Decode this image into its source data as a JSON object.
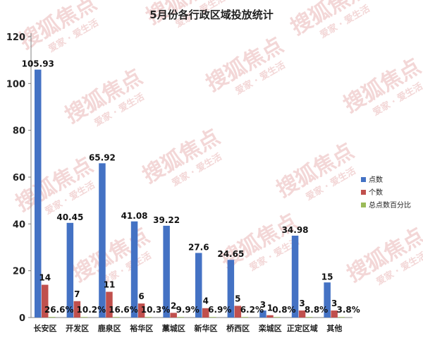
{
  "chart_data": {
    "type": "bar",
    "title": "5月份各行政区域投放统计",
    "categories": [
      "长安区",
      "开发区",
      "鹿泉区",
      "裕华区",
      "藁城区",
      "新华区",
      "桥西区",
      "栾城区",
      "正定区域",
      "其他"
    ],
    "series": [
      {
        "name": "点数",
        "color": "#4472c4",
        "values": [
          105.93,
          40.45,
          65.92,
          41.08,
          39.22,
          27.6,
          24.65,
          3,
          34.98,
          15
        ],
        "labels": [
          "105.93",
          "40.45",
          "65.92",
          "41.08",
          "39.22",
          "27.6",
          "24.65",
          "3",
          "34.98",
          "15"
        ]
      },
      {
        "name": "个数",
        "color": "#c0504d",
        "values": [
          14,
          7,
          11,
          6,
          2,
          4,
          5,
          1,
          3,
          3
        ],
        "labels": [
          "14",
          "7",
          "11",
          "6",
          "2",
          "4",
          "5",
          "1",
          "3",
          "3"
        ]
      },
      {
        "name": "总点数百分比",
        "color": "#9bbb59",
        "values": [
          0.266,
          0.102,
          0.166,
          0.103,
          0.099,
          0.069,
          0.062,
          0.008,
          0.088,
          0.038
        ],
        "labels": [
          "26.6%",
          "10.2%",
          "16.6%",
          "10.3%",
          "9.9%",
          "6.9%",
          "6.2%",
          "0.8%",
          "8.8%",
          "3.8%"
        ]
      }
    ],
    "yticks": [
      "0",
      "20",
      "40",
      "60",
      "80",
      "100",
      "120"
    ],
    "ylim": [
      0,
      120
    ],
    "grid": false,
    "legend": "right",
    "watermark": {
      "brand": "搜狐焦点",
      "slogan": "爱家 · 爱生活"
    }
  }
}
